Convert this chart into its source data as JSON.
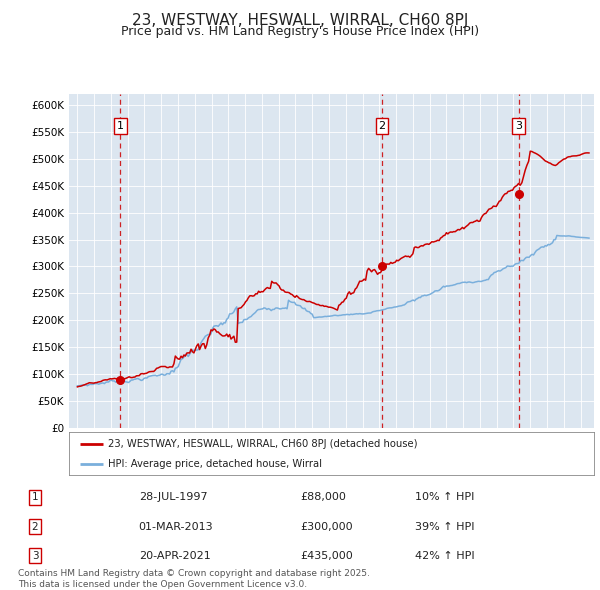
{
  "title": "23, WESTWAY, HESWALL, WIRRAL, CH60 8PJ",
  "subtitle": "Price paid vs. HM Land Registry's House Price Index (HPI)",
  "title_fontsize": 11,
  "subtitle_fontsize": 9,
  "plot_bg_color": "#dce6f0",
  "red_line_color": "#cc0000",
  "blue_line_color": "#7aafdc",
  "marker_color": "#cc0000",
  "dashed_line_color": "#cc0000",
  "legend_line1": "23, WESTWAY, HESWALL, WIRRAL, CH60 8PJ (detached house)",
  "legend_line2": "HPI: Average price, detached house, Wirral",
  "transactions": [
    {
      "label": "1",
      "date": "28-JUL-1997",
      "price": 88000,
      "pct": "10%",
      "dir": "↑",
      "x_year": 1997.57
    },
    {
      "label": "2",
      "date": "01-MAR-2013",
      "price": 300000,
      "pct": "39%",
      "dir": "↑",
      "x_year": 2013.16
    },
    {
      "label": "3",
      "date": "20-APR-2021",
      "price": 435000,
      "pct": "42%",
      "dir": "↑",
      "x_year": 2021.3
    }
  ],
  "ylim": [
    0,
    620000
  ],
  "xlim": [
    1994.5,
    2025.8
  ],
  "yticks": [
    0,
    50000,
    100000,
    150000,
    200000,
    250000,
    300000,
    350000,
    400000,
    450000,
    500000,
    550000,
    600000
  ],
  "ytick_labels": [
    "£0",
    "£50K",
    "£100K",
    "£150K",
    "£200K",
    "£250K",
    "£300K",
    "£350K",
    "£400K",
    "£450K",
    "£500K",
    "£550K",
    "£600K"
  ],
  "footer_text": "Contains HM Land Registry data © Crown copyright and database right 2025.\nThis data is licensed under the Open Government Licence v3.0.",
  "footer_fontsize": 6.5
}
